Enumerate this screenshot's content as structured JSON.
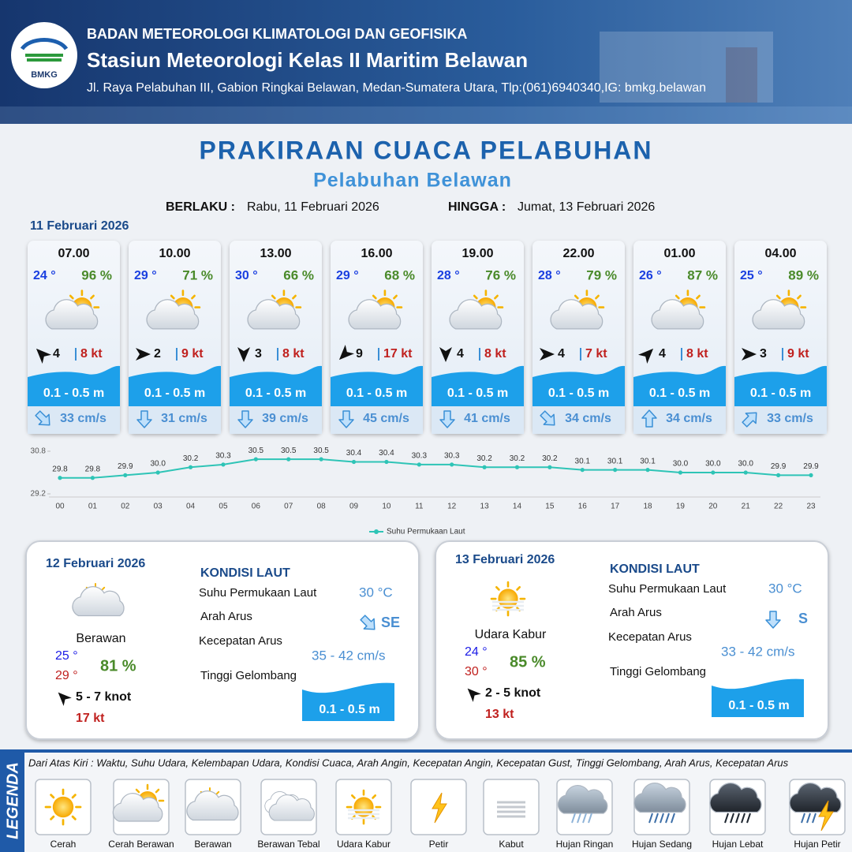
{
  "header": {
    "logo_text": "BMKG",
    "organization": "BADAN METEOROLOGI KLIMATOLOGI DAN GEOFISIKA",
    "station": "Stasiun Meteorologi Kelas II Maritim Belawan",
    "address": "Jl. Raya Pelabuhan III, Gabion Ringkai Belawan, Medan-Sumatera Utara, Tlp:(061)6940340,IG: bmkg.belawan"
  },
  "title": "PRAKIRAAN CUACA PELABUHAN",
  "subtitle": "Pelabuhan Belawan",
  "validity": {
    "from_label": "BERLAKU :",
    "from": "Rabu, 11 Februari 2026",
    "to_label": "HINGGA :",
    "to": "Jumat, 13 Februari 2026"
  },
  "day1": {
    "date": "11 Februari 2026",
    "slots": [
      {
        "time": "07.00",
        "temp": "24 °",
        "humidity": "96 %",
        "wind": "4",
        "gust": "8 kt",
        "wave": "0.1 - 0.5 m",
        "current": "33 cm/s"
      },
      {
        "time": "10.00",
        "temp": "29 °",
        "humidity": "71 %",
        "wind": "2",
        "gust": "9 kt",
        "wave": "0.1 - 0.5 m",
        "current": "31 cm/s"
      },
      {
        "time": "13.00",
        "temp": "30 °",
        "humidity": "66 %",
        "wind": "3",
        "gust": "8 kt",
        "wave": "0.1 - 0.5 m",
        "current": "39 cm/s"
      },
      {
        "time": "16.00",
        "temp": "29 °",
        "humidity": "68 %",
        "wind": "9",
        "gust": "17 kt",
        "wave": "0.1 - 0.5 m",
        "current": "45 cm/s"
      },
      {
        "time": "19.00",
        "temp": "28 °",
        "humidity": "76 %",
        "wind": "4",
        "gust": "8 kt",
        "wave": "0.1 - 0.5 m",
        "current": "41 cm/s"
      },
      {
        "time": "22.00",
        "temp": "28 °",
        "humidity": "79 %",
        "wind": "4",
        "gust": "7 kt",
        "wave": "0.1 - 0.5 m",
        "current": "34 cm/s"
      },
      {
        "time": "01.00",
        "temp": "26 °",
        "humidity": "87 %",
        "wind": "4",
        "gust": "8 kt",
        "wave": "0.1 - 0.5 m",
        "current": "34 cm/s"
      },
      {
        "time": "04.00",
        "temp": "25 °",
        "humidity": "89 %",
        "wind": "3",
        "gust": "9 kt",
        "wave": "0.1 - 0.5 m",
        "current": "33 cm/s"
      }
    ]
  },
  "chart_data": {
    "type": "line",
    "categories": [
      "00",
      "01",
      "02",
      "03",
      "04",
      "05",
      "06",
      "07",
      "08",
      "09",
      "10",
      "11",
      "12",
      "13",
      "14",
      "15",
      "16",
      "17",
      "18",
      "19",
      "20",
      "21",
      "22",
      "23"
    ],
    "series": [
      {
        "name": "Suhu Permukaan Laut",
        "color": "#2ec4b6",
        "values": [
          29.8,
          29.8,
          29.9,
          30.0,
          30.2,
          30.3,
          30.5,
          30.5,
          30.5,
          30.4,
          30.4,
          30.3,
          30.3,
          30.2,
          30.2,
          30.2,
          30.1,
          30.1,
          30.1,
          30.0,
          30.0,
          30.0,
          29.9,
          29.9
        ],
        "value_labels": [
          "29.8",
          "29.8",
          "29.9",
          "30.0",
          "30.2",
          "30.3",
          "30.5",
          "30.5",
          "30.5",
          "30.4",
          "30.4",
          "30.3",
          "30.3",
          "30.2",
          "30.2",
          "30.2",
          "30.1",
          "30.1",
          "30.1",
          "30.0",
          "30.0",
          "30.0",
          "29.9",
          "29.9"
        ]
      }
    ],
    "ylim": [
      29.2,
      30.8
    ],
    "yticks": [
      29.2,
      30.8
    ],
    "grid": false,
    "legend": "bottom"
  },
  "day2": {
    "date": "12 Februari 2026",
    "condition": "Berawan",
    "temp_min": "25 °",
    "temp_max": "29 °",
    "humidity": "81 %",
    "wind": "5  - 7 knot",
    "gust": "17 kt",
    "sea": {
      "title": "KONDISI LAUT",
      "sst_label": "Suhu Permukaan Laut",
      "sst": "30 °C",
      "dir_label": "Arah Arus",
      "dir": "SE",
      "speed_label": "Kecepatan Arus",
      "speed": "35 - 42 cm/s",
      "wave_label": "Tinggi Gelombang",
      "wave": "0.1 - 0.5 m"
    }
  },
  "day3": {
    "date": "13 Februari 2026",
    "condition": "Udara Kabur",
    "temp_min": "24 °",
    "temp_max": "30 °",
    "humidity": "85 %",
    "wind": "2  - 5 knot",
    "gust": "13 kt",
    "sea": {
      "title": "KONDISI LAUT",
      "sst_label": "Suhu Permukaan Laut",
      "sst": "30 °C",
      "dir_label": "Arah Arus",
      "dir": "S",
      "speed_label": "Kecepatan Arus",
      "speed": "33  - 42 cm/s",
      "wave_label": "Tinggi Gelombang",
      "wave": "0.1 - 0.5 m"
    }
  },
  "legend": {
    "title": "LEGENDA",
    "description": "Dari Atas Kiri : Waktu, Suhu Udara, Kelembapan Udara, Kondisi Cuaca, Arah Angin, Kecepatan Angin, Kecepatan Gust, Tinggi Gelombang, Arah Arus, Kecepatan Arus",
    "items": [
      "Cerah",
      "Cerah Berawan",
      "Berawan",
      "Berawan Tebal",
      "Udara Kabur",
      "Petir",
      "Kabut",
      "Hujan Ringan",
      "Hujan Sedang",
      "Hujan Lebat",
      "Hujan Petir"
    ]
  }
}
